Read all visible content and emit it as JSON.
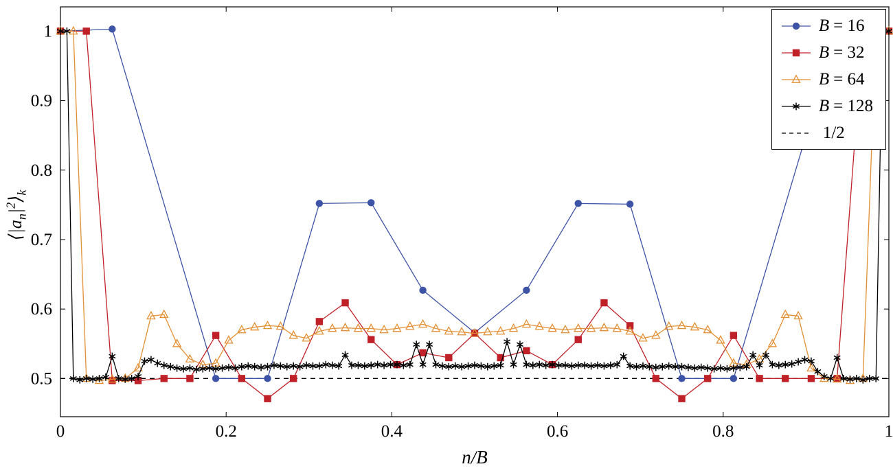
{
  "figure": {
    "xlabel": "n/B",
    "ylabel_parts": {
      "pre": "⟨|a",
      "sub1": "n",
      "mid": "|",
      "sup": "2",
      "post": "⟩",
      "sub2": "k"
    }
  },
  "chart_data": {
    "type": "line",
    "title": "",
    "xlabel": "n/B",
    "ylabel": "⟨|a_n|^2⟩_k",
    "xlim": [
      0,
      1
    ],
    "ylim": [
      0.445,
      1.035
    ],
    "xticks": [
      0,
      0.2,
      0.4,
      0.6,
      0.8,
      1
    ],
    "xtick_labels": [
      "0",
      "0.2",
      "0.4",
      "0.6",
      "0.8",
      "1"
    ],
    "yticks": [
      0.5,
      0.6,
      0.7,
      0.8,
      0.9,
      1
    ],
    "ytick_labels": [
      "0.5",
      "0.6",
      "0.7",
      "0.8",
      "0.9",
      "1"
    ],
    "grid": false,
    "legend_position": "top-right",
    "series": [
      {
        "name": "B = 16",
        "label_var": "B",
        "label_rest": "= 16",
        "color": "#3d53a5",
        "marker": "circle",
        "line": "solid",
        "B": 16,
        "n": [
          0,
          1,
          3,
          4,
          5,
          6,
          7,
          8,
          9,
          10,
          11,
          12,
          13,
          15,
          16
        ],
        "y": [
          1.0,
          1.003,
          0.5,
          0.5,
          0.752,
          0.753,
          0.627,
          0.566,
          0.627,
          0.752,
          0.751,
          0.5,
          0.5,
          1.0,
          1.0
        ]
      },
      {
        "name": "B = 32",
        "label_var": "B",
        "label_rest": "= 32",
        "color": "#c02128",
        "marker": "square",
        "line": "solid",
        "B": 32,
        "y": [
          1.0,
          1.0,
          0.497,
          0.497,
          0.5,
          0.5,
          0.562,
          0.5,
          0.471,
          0.5,
          0.582,
          0.609,
          0.556,
          0.52,
          0.537,
          0.53,
          0.565,
          0.53,
          0.54,
          0.52,
          0.556,
          0.609,
          0.576,
          0.5,
          0.471,
          0.5,
          0.562,
          0.5,
          0.5,
          0.5,
          0.5,
          1.0,
          1.0
        ]
      },
      {
        "name": "B = 64",
        "label_var": "B",
        "label_rest": "= 64",
        "color": "#e48f33",
        "marker": "triangle",
        "line": "solid",
        "B": 64,
        "y": [
          1.0,
          1.0,
          0.5,
          0.497,
          0.499,
          0.5,
          0.515,
          0.59,
          0.592,
          0.55,
          0.528,
          0.52,
          0.522,
          0.555,
          0.57,
          0.574,
          0.576,
          0.575,
          0.562,
          0.558,
          0.568,
          0.572,
          0.573,
          0.572,
          0.572,
          0.57,
          0.572,
          0.575,
          0.578,
          0.572,
          0.568,
          0.567,
          0.565,
          0.567,
          0.568,
          0.572,
          0.578,
          0.575,
          0.572,
          0.57,
          0.572,
          0.572,
          0.573,
          0.572,
          0.568,
          0.558,
          0.562,
          0.575,
          0.576,
          0.574,
          0.57,
          0.555,
          0.522,
          0.52,
          0.528,
          0.55,
          0.592,
          0.59,
          0.515,
          0.5,
          0.499,
          0.497,
          0.5,
          1.0,
          1.0
        ]
      },
      {
        "name": "B = 128",
        "label_var": "B",
        "label_rest": "= 128",
        "color": "#000000",
        "marker": "star",
        "line": "solid",
        "B": 128,
        "y": [
          1.0,
          1.0,
          0.5,
          0.498,
          0.5,
          0.499,
          0.5,
          0.502,
          0.532,
          0.5,
          0.499,
          0.5,
          0.503,
          0.525,
          0.527,
          0.522,
          0.519,
          0.517,
          0.515,
          0.514,
          0.515,
          0.513,
          0.514,
          0.515,
          0.514,
          0.515,
          0.516,
          0.515,
          0.517,
          0.518,
          0.517,
          0.516,
          0.517,
          0.519,
          0.518,
          0.517,
          0.518,
          0.517,
          0.519,
          0.518,
          0.518,
          0.52,
          0.519,
          0.518,
          0.534,
          0.519,
          0.519,
          0.518,
          0.519,
          0.52,
          0.519,
          0.52,
          0.52,
          0.519,
          0.52,
          0.549,
          0.52,
          0.549,
          0.52,
          0.518,
          0.517,
          0.518,
          0.517,
          0.518,
          0.519,
          0.518,
          0.517,
          0.518,
          0.519,
          0.553,
          0.52,
          0.549,
          0.52,
          0.519,
          0.52,
          0.519,
          0.52,
          0.519,
          0.519,
          0.518,
          0.519,
          0.519,
          0.518,
          0.519,
          0.518,
          0.519,
          0.52,
          0.532,
          0.518,
          0.517,
          0.518,
          0.517,
          0.516,
          0.517,
          0.518,
          0.517,
          0.517,
          0.516,
          0.515,
          0.516,
          0.515,
          0.514,
          0.515,
          0.514,
          0.515,
          0.516,
          0.517,
          0.534,
          0.519,
          0.534,
          0.52,
          0.519,
          0.52,
          0.521,
          0.524,
          0.527,
          0.525,
          0.51,
          0.503,
          0.5,
          0.53,
          0.5,
          0.499,
          0.5,
          0.498,
          0.5,
          0.5,
          1.0,
          1.0
        ]
      },
      {
        "name": "1/2",
        "label_var": "",
        "label_rest": "1/2",
        "color": "#000000",
        "marker": "none",
        "line": "dashed",
        "x": [
          0,
          1
        ],
        "y": [
          0.5,
          0.5
        ]
      }
    ]
  }
}
